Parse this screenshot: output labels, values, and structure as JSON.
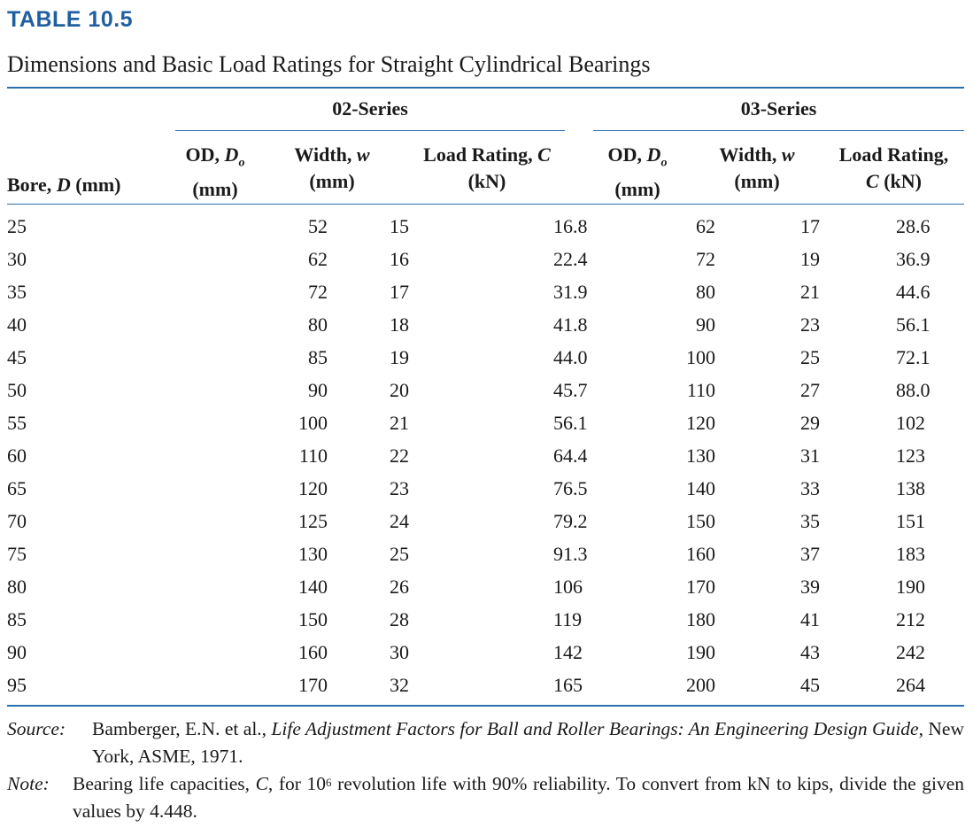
{
  "table_label": "TABLE 10.5",
  "title": "Dimensions and Basic Load Ratings for Straight Cylindrical Bearings",
  "series": {
    "s02": "02-Series",
    "s03": "03-Series"
  },
  "headers": {
    "bore": "Bore, D (mm)",
    "od_line1": "OD, D",
    "od_sub": "o",
    "od_line2": "(mm)",
    "width_line1": "Width, w",
    "width_line2": "(mm)",
    "load02_line1": "Load Rating, C",
    "load02_line2": "(kN)",
    "load03_line1": "Load Rating,",
    "load03_line2": "C (kN)"
  },
  "rows": [
    [
      "25",
      "52",
      "15",
      "16.8",
      "62",
      "17",
      "28.6"
    ],
    [
      "30",
      "62",
      "16",
      "22.4",
      "72",
      "19",
      "36.9"
    ],
    [
      "35",
      "72",
      "17",
      "31.9",
      "80",
      "21",
      "44.6"
    ],
    [
      "40",
      "80",
      "18",
      "41.8",
      "90",
      "23",
      "56.1"
    ],
    [
      "45",
      "85",
      "19",
      "44.0",
      "100",
      "25",
      "72.1"
    ],
    [
      "50",
      "90",
      "20",
      "45.7",
      "110",
      "27",
      "88.0"
    ],
    [
      "55",
      "100",
      "21",
      "56.1",
      "120",
      "29",
      "102"
    ],
    [
      "60",
      "110",
      "22",
      "64.4",
      "130",
      "31",
      "123"
    ],
    [
      "65",
      "120",
      "23",
      "76.5",
      "140",
      "33",
      "138"
    ],
    [
      "70",
      "125",
      "24",
      "79.2",
      "150",
      "35",
      "151"
    ],
    [
      "75",
      "130",
      "25",
      "91.3",
      "160",
      "37",
      "183"
    ],
    [
      "80",
      "140",
      "26",
      "106",
      "170",
      "39",
      "190"
    ],
    [
      "85",
      "150",
      "28",
      "119",
      "180",
      "41",
      "212"
    ],
    [
      "90",
      "160",
      "30",
      "142",
      "190",
      "43",
      "242"
    ],
    [
      "95",
      "170",
      "32",
      "165",
      "200",
      "45",
      "264"
    ]
  ],
  "source": {
    "key": "Source:",
    "pre": "Bamberger, E.N. et al., ",
    "book": "Life Adjustment Factors for Ball and Roller Bearings: An Engineering Design Guide",
    "post": ", New York, ASME, 1971."
  },
  "note": {
    "key": "Note:",
    "pre": "Bearing life capacities, ",
    "var": "C",
    "mid": ", for 10",
    "exp": "6",
    "post": " revolution life with 90% reliability. To convert from kN to kips, divide the given values by 4.448."
  }
}
